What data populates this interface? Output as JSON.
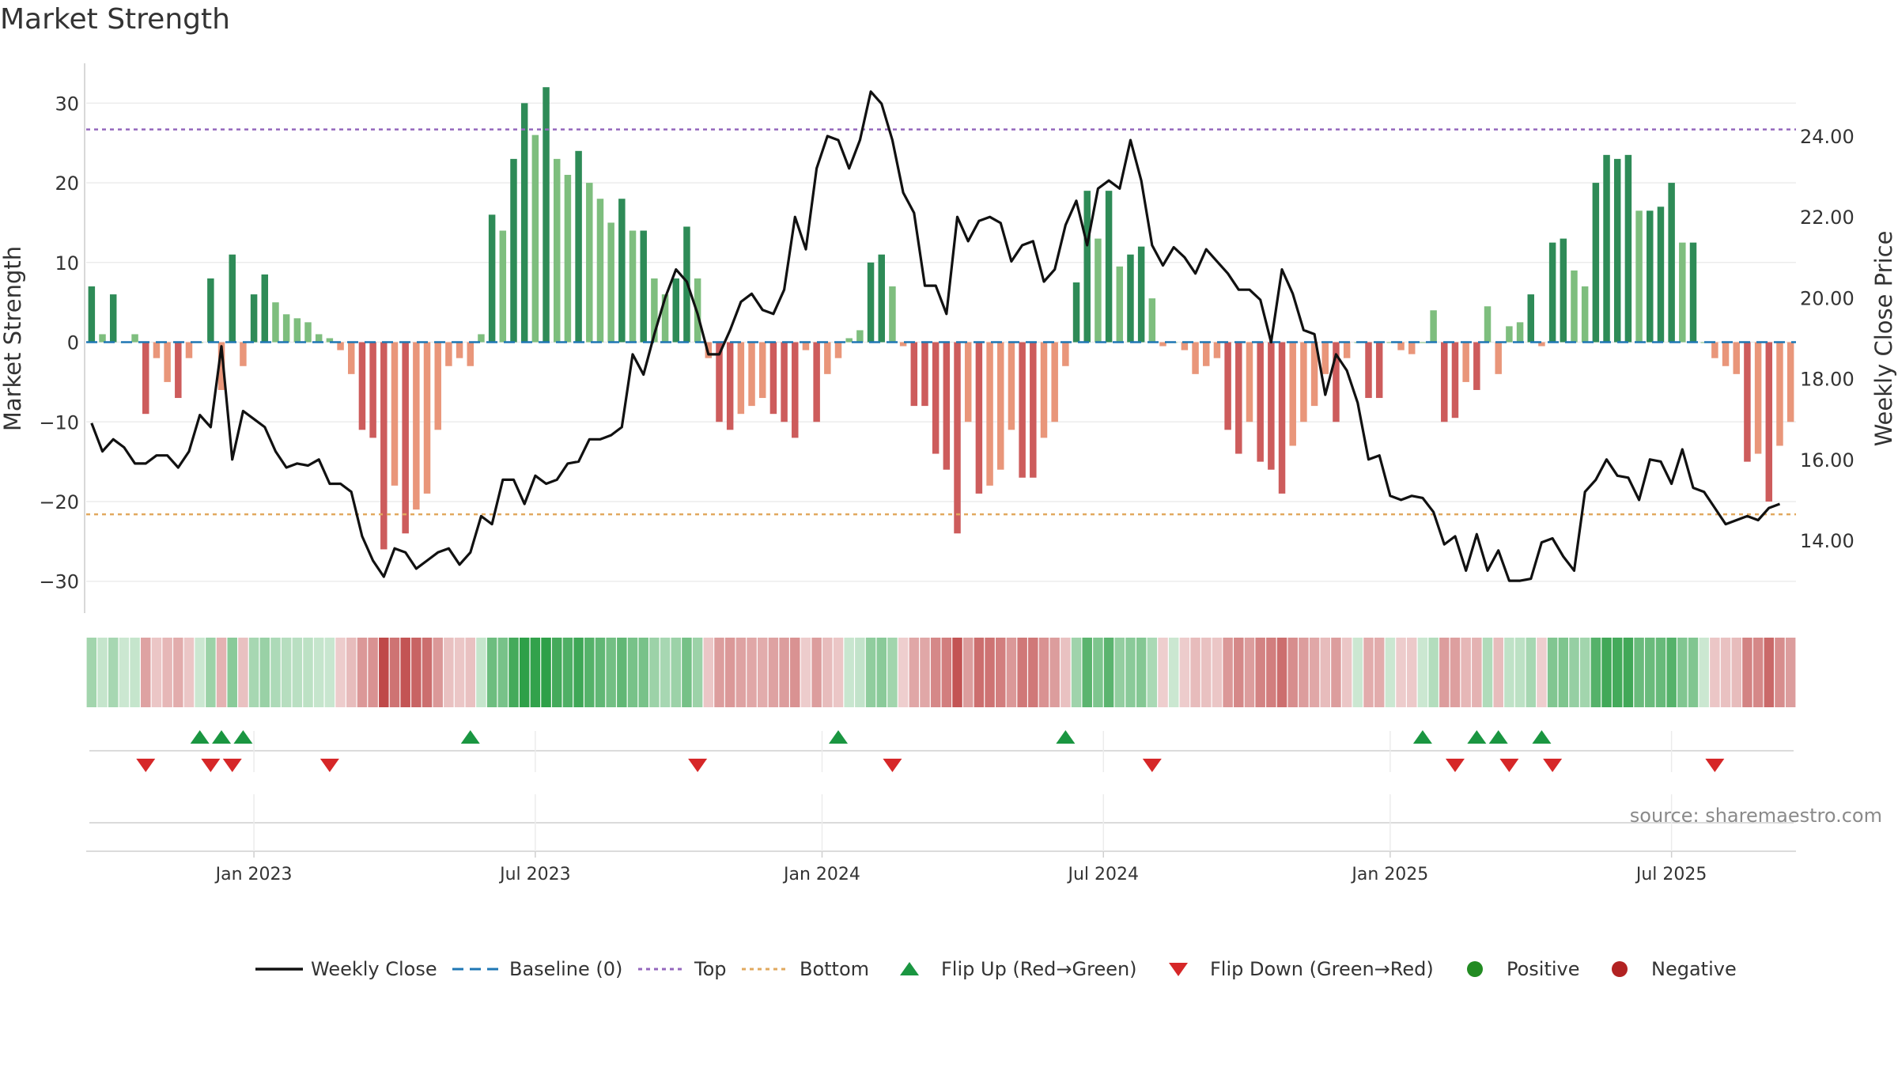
{
  "chart_data": {
    "type": "bar+line",
    "title": "Market Strength",
    "ylabel_left": "Market Strength",
    "ylabel_right": "Weekly Close Price",
    "source": "source: sharemaestro.com",
    "left_ylim": [
      -34,
      35
    ],
    "right_ylim": [
      12.2,
      25.8
    ],
    "left_ticks": [
      30,
      20,
      10,
      0,
      -10,
      -20,
      -30
    ],
    "left_tick_labels": [
      "30",
      "20",
      "10",
      "0",
      "−10",
      "−20",
      "−30"
    ],
    "right_ticks": [
      24,
      22,
      20,
      18,
      16,
      14
    ],
    "right_tick_labels": [
      "24.00",
      "22.00",
      "20.00",
      "18.00",
      "16.00",
      "14.00"
    ],
    "top_line": 26.7,
    "bottom_line": -21.6,
    "baseline": 0,
    "x_start_week": 0,
    "x_end_week": 157,
    "x_ticks": [
      {
        "label": "Jan 2023",
        "week": 15
      },
      {
        "label": "Jul 2023",
        "week": 41
      },
      {
        "label": "Jan 2024",
        "week": 67.5
      },
      {
        "label": "Jul 2024",
        "week": 93.5
      },
      {
        "label": "Jan 2025",
        "week": 120
      },
      {
        "label": "Jul 2025",
        "week": 146
      }
    ],
    "strength": [
      7,
      1,
      6,
      0,
      1,
      -9,
      -2,
      -5,
      -7,
      -2,
      0,
      8,
      -6,
      11,
      -3,
      6,
      8.5,
      5,
      3.5,
      3,
      2.5,
      1,
      0.5,
      -1,
      -4,
      -11,
      -12,
      -26,
      -18,
      -24,
      -21,
      -19,
      -11,
      -3,
      -2,
      -3,
      1,
      16,
      14,
      23,
      30,
      26,
      32,
      23,
      21,
      24,
      20,
      18,
      15,
      18,
      14,
      14,
      8,
      6,
      8,
      14.5,
      8,
      -2,
      -10,
      -11,
      -9,
      -8,
      -7,
      -9,
      -10,
      -12,
      -1,
      -10,
      -4,
      -2,
      0.5,
      1.5,
      10,
      11,
      7,
      -0.5,
      -8,
      -8,
      -14,
      -16,
      -24,
      -10,
      -19,
      -18,
      -16,
      -11,
      -17,
      -17,
      -12,
      -10,
      -3,
      7.5,
      19,
      13,
      19,
      9.5,
      11,
      12,
      5.5,
      -0.5,
      0,
      -1,
      -4,
      -3,
      -2,
      -11,
      -14,
      -10,
      -15,
      -16,
      -19,
      -13,
      -10,
      -8,
      -4,
      -10,
      -2,
      0,
      -7,
      -7,
      0,
      -1,
      -1.5,
      0,
      4,
      -10,
      -9.5,
      -5,
      -6,
      4.5,
      -4,
      2,
      2.5,
      6,
      -0.5,
      12.5,
      13,
      9,
      7,
      20,
      23.5,
      23,
      23.5,
      16.5,
      16.5,
      17,
      20,
      12.5,
      12.5,
      0,
      -2,
      -3,
      -4,
      -15,
      -14,
      -20,
      -13,
      -10
    ],
    "weekly_close": [
      16.9,
      16.2,
      16.5,
      16.3,
      15.9,
      15.9,
      16.1,
      16.1,
      15.8,
      16.2,
      17.1,
      16.8,
      18.8,
      16.0,
      17.2,
      17.0,
      16.8,
      16.2,
      15.8,
      15.9,
      15.85,
      16.0,
      15.4,
      15.4,
      15.2,
      14.1,
      13.5,
      13.1,
      13.8,
      13.7,
      13.3,
      13.5,
      13.7,
      13.8,
      13.4,
      13.7,
      14.6,
      14.4,
      15.5,
      15.5,
      14.9,
      15.6,
      15.4,
      15.5,
      15.9,
      15.95,
      16.5,
      16.5,
      16.6,
      16.8,
      18.6,
      18.1,
      19.1,
      20.0,
      20.7,
      20.4,
      19.6,
      18.6,
      18.6,
      19.2,
      19.9,
      20.1,
      19.7,
      19.6,
      20.2,
      22.0,
      21.2,
      23.2,
      24.0,
      23.9,
      23.2,
      23.9,
      25.1,
      24.8,
      23.9,
      22.6,
      22.1,
      20.3,
      20.3,
      19.6,
      22.0,
      21.4,
      21.9,
      22.0,
      21.85,
      20.9,
      21.3,
      21.4,
      20.4,
      20.7,
      21.8,
      22.4,
      21.3,
      22.7,
      22.9,
      22.7,
      23.9,
      22.9,
      21.3,
      20.8,
      21.25,
      21.0,
      20.6,
      21.2,
      20.9,
      20.6,
      20.2,
      20.2,
      19.95,
      18.9,
      20.7,
      20.1,
      19.2,
      19.1,
      17.6,
      18.6,
      18.2,
      17.4,
      16.0,
      16.1,
      15.1,
      15.0,
      15.1,
      15.05,
      14.7,
      13.9,
      14.1,
      13.25,
      14.15,
      13.25,
      13.75,
      13.0,
      13.0,
      13.05,
      13.95,
      14.05,
      13.6,
      13.25,
      15.2,
      15.5,
      16.0,
      15.6,
      15.55,
      15.0,
      16.0,
      15.95,
      15.4,
      16.25,
      15.3,
      15.2,
      14.8,
      14.4,
      14.5,
      14.6,
      14.5,
      14.8,
      14.9
    ],
    "flip_up_weeks": [
      10,
      12,
      14,
      35,
      69,
      90,
      123,
      128,
      130,
      134
    ],
    "flip_down_weeks": [
      5,
      11,
      13,
      22,
      56,
      74,
      98,
      126,
      131,
      135,
      150
    ],
    "legend": [
      "Weekly Close",
      "Baseline (0)",
      "Top",
      "Bottom",
      "Flip Up (Red→Green)",
      "Flip Down (Green→Red)",
      "Positive",
      "Negative"
    ],
    "colors": {
      "pos_strong": "#2e8b57",
      "pos_weak": "#7ebe7e",
      "neg_strong": "#cd5c5c",
      "neg_weak": "#e9967a",
      "close": "#111111",
      "baseline": "#1f77b4",
      "top": "#9467bd",
      "bottom": "#e1a95f",
      "flip_up": "#1a9641",
      "flip_down": "#d62728",
      "positive": "#228b22",
      "negative": "#b22222"
    }
  }
}
